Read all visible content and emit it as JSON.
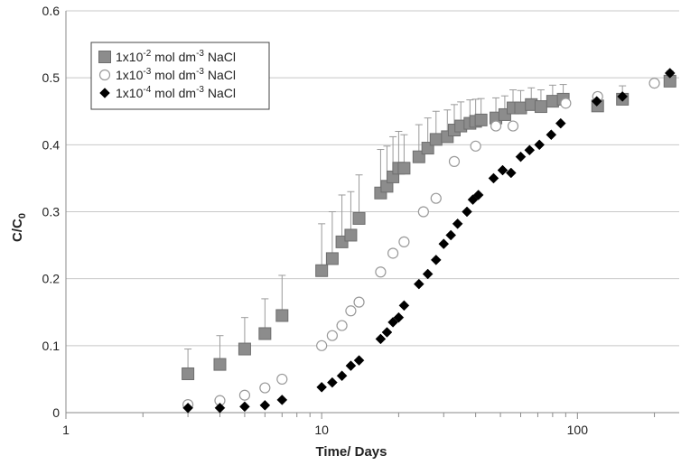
{
  "chart_data": {
    "type": "scatter",
    "xscale": "log",
    "xlim": [
      1,
      250
    ],
    "ylim": [
      0,
      0.6
    ],
    "xticks": [
      1,
      10,
      100
    ],
    "yticks": [
      0,
      0.1,
      0.2,
      0.3,
      0.4,
      0.5,
      0.6
    ],
    "xtick_labels": [
      "1",
      "10",
      "100"
    ],
    "ytick_labels": [
      "0",
      "0.1",
      "0.2",
      "0.3",
      "0.4",
      "0.5",
      "0.6"
    ],
    "xlabel": "Time/ Days",
    "ylabel": {
      "main": "C/C",
      "sub": "0"
    },
    "grid": "horizontal",
    "legend_position": "top-left",
    "series": [
      {
        "name": "1x10-2 mol dm-3 NaCl",
        "name_parts": {
          "pre": "1x10",
          "exp": "-2",
          "mid": " mol dm",
          "exp2": "-3",
          "post": " NaCl"
        },
        "marker": "square",
        "color": "#8c8c8c",
        "stroke": "#6e6e6e",
        "points": [
          {
            "x": 3,
            "y": 0.058,
            "err": 0.037
          },
          {
            "x": 4,
            "y": 0.072,
            "err": 0.043
          },
          {
            "x": 5,
            "y": 0.095,
            "err": 0.047
          },
          {
            "x": 6,
            "y": 0.118,
            "err": 0.052
          },
          {
            "x": 7,
            "y": 0.145,
            "err": 0.06
          },
          {
            "x": 10,
            "y": 0.212,
            "err": 0.07
          },
          {
            "x": 11,
            "y": 0.23,
            "err": 0.07
          },
          {
            "x": 12,
            "y": 0.255,
            "err": 0.07
          },
          {
            "x": 13,
            "y": 0.265,
            "err": 0.065
          },
          {
            "x": 14,
            "y": 0.29,
            "err": 0.065
          },
          {
            "x": 17,
            "y": 0.328,
            "err": 0.065
          },
          {
            "x": 18,
            "y": 0.338,
            "err": 0.06
          },
          {
            "x": 19,
            "y": 0.352,
            "err": 0.06
          },
          {
            "x": 20,
            "y": 0.365,
            "err": 0.055
          },
          {
            "x": 21,
            "y": 0.365,
            "err": 0.05
          },
          {
            "x": 24,
            "y": 0.382,
            "err": 0.048
          },
          {
            "x": 26,
            "y": 0.395,
            "err": 0.045
          },
          {
            "x": 28,
            "y": 0.408,
            "err": 0.042
          },
          {
            "x": 31,
            "y": 0.412,
            "err": 0.04
          },
          {
            "x": 33,
            "y": 0.422,
            "err": 0.038
          },
          {
            "x": 35,
            "y": 0.428,
            "err": 0.036
          },
          {
            "x": 38,
            "y": 0.432,
            "err": 0.035
          },
          {
            "x": 40,
            "y": 0.435,
            "err": 0.033
          },
          {
            "x": 42,
            "y": 0.437,
            "err": 0.032
          },
          {
            "x": 48,
            "y": 0.44,
            "err": 0.03
          },
          {
            "x": 52,
            "y": 0.445,
            "err": 0.028
          },
          {
            "x": 56,
            "y": 0.455,
            "err": 0.027
          },
          {
            "x": 60,
            "y": 0.455,
            "err": 0.026
          },
          {
            "x": 66,
            "y": 0.46,
            "err": 0.025
          },
          {
            "x": 72,
            "y": 0.457,
            "err": 0.025
          },
          {
            "x": 80,
            "y": 0.465,
            "err": 0.024
          },
          {
            "x": 88,
            "y": 0.468,
            "err": 0.022
          },
          {
            "x": 120,
            "y": 0.458,
            "err": 0.02
          },
          {
            "x": 150,
            "y": 0.468,
            "err": 0.02
          },
          {
            "x": 230,
            "y": 0.495,
            "err": 0.015
          }
        ]
      },
      {
        "name": "1x10-3 mol dm-3 NaCl",
        "name_parts": {
          "pre": "1x10",
          "exp": "-3",
          "mid": " mol dm",
          "exp2": "-3",
          "post": " NaCl"
        },
        "marker": "circle",
        "color": "#ffffff",
        "stroke": "#999999",
        "points": [
          {
            "x": 3,
            "y": 0.012,
            "err": 0
          },
          {
            "x": 4,
            "y": 0.018,
            "err": 0
          },
          {
            "x": 5,
            "y": 0.026,
            "err": 0
          },
          {
            "x": 6,
            "y": 0.037,
            "err": 0
          },
          {
            "x": 7,
            "y": 0.05,
            "err": 0
          },
          {
            "x": 10,
            "y": 0.1,
            "err": 0
          },
          {
            "x": 11,
            "y": 0.115,
            "err": 0
          },
          {
            "x": 12,
            "y": 0.13,
            "err": 0
          },
          {
            "x": 13,
            "y": 0.152,
            "err": 0
          },
          {
            "x": 14,
            "y": 0.165,
            "err": 0
          },
          {
            "x": 17,
            "y": 0.21,
            "err": 0
          },
          {
            "x": 19,
            "y": 0.238,
            "err": 0
          },
          {
            "x": 21,
            "y": 0.255,
            "err": 0
          },
          {
            "x": 25,
            "y": 0.3,
            "err": 0
          },
          {
            "x": 28,
            "y": 0.32,
            "err": 0
          },
          {
            "x": 33,
            "y": 0.375,
            "err": 0
          },
          {
            "x": 40,
            "y": 0.398,
            "err": 0
          },
          {
            "x": 48,
            "y": 0.428,
            "err": 0
          },
          {
            "x": 56,
            "y": 0.428,
            "err": 0
          },
          {
            "x": 90,
            "y": 0.462,
            "err": 0
          },
          {
            "x": 120,
            "y": 0.472,
            "err": 0
          },
          {
            "x": 200,
            "y": 0.492,
            "err": 0
          }
        ]
      },
      {
        "name": "1x10-4 mol dm-3 NaCl",
        "name_parts": {
          "pre": "1x10",
          "exp": "-4",
          "mid": " mol dm",
          "exp2": "-3",
          "post": " NaCl"
        },
        "marker": "diamond",
        "color": "#000000",
        "stroke": "#000000",
        "points": [
          {
            "x": 3,
            "y": 0.007,
            "err": 0
          },
          {
            "x": 4,
            "y": 0.007,
            "err": 0
          },
          {
            "x": 5,
            "y": 0.009,
            "err": 0
          },
          {
            "x": 6,
            "y": 0.011,
            "err": 0
          },
          {
            "x": 7,
            "y": 0.019,
            "err": 0
          },
          {
            "x": 10,
            "y": 0.038,
            "err": 0
          },
          {
            "x": 11,
            "y": 0.045,
            "err": 0
          },
          {
            "x": 12,
            "y": 0.055,
            "err": 0
          },
          {
            "x": 13,
            "y": 0.07,
            "err": 0
          },
          {
            "x": 14,
            "y": 0.078,
            "err": 0
          },
          {
            "x": 17,
            "y": 0.11,
            "err": 0
          },
          {
            "x": 18,
            "y": 0.12,
            "err": 0
          },
          {
            "x": 19,
            "y": 0.135,
            "err": 0
          },
          {
            "x": 20,
            "y": 0.142,
            "err": 0
          },
          {
            "x": 21,
            "y": 0.16,
            "err": 0
          },
          {
            "x": 24,
            "y": 0.192,
            "err": 0
          },
          {
            "x": 26,
            "y": 0.207,
            "err": 0
          },
          {
            "x": 28,
            "y": 0.228,
            "err": 0
          },
          {
            "x": 30,
            "y": 0.252,
            "err": 0
          },
          {
            "x": 32,
            "y": 0.265,
            "err": 0
          },
          {
            "x": 34,
            "y": 0.282,
            "err": 0
          },
          {
            "x": 37,
            "y": 0.3,
            "err": 0
          },
          {
            "x": 39,
            "y": 0.318,
            "err": 0
          },
          {
            "x": 41,
            "y": 0.325,
            "err": 0
          },
          {
            "x": 47,
            "y": 0.35,
            "err": 0
          },
          {
            "x": 51,
            "y": 0.362,
            "err": 0
          },
          {
            "x": 55,
            "y": 0.358,
            "err": 0
          },
          {
            "x": 60,
            "y": 0.382,
            "err": 0
          },
          {
            "x": 65,
            "y": 0.392,
            "err": 0
          },
          {
            "x": 71,
            "y": 0.4,
            "err": 0
          },
          {
            "x": 79,
            "y": 0.415,
            "err": 0
          },
          {
            "x": 86,
            "y": 0.432,
            "err": 0
          },
          {
            "x": 119,
            "y": 0.465,
            "err": 0
          },
          {
            "x": 150,
            "y": 0.472,
            "err": 0
          },
          {
            "x": 230,
            "y": 0.507,
            "err": 0
          }
        ]
      }
    ]
  }
}
